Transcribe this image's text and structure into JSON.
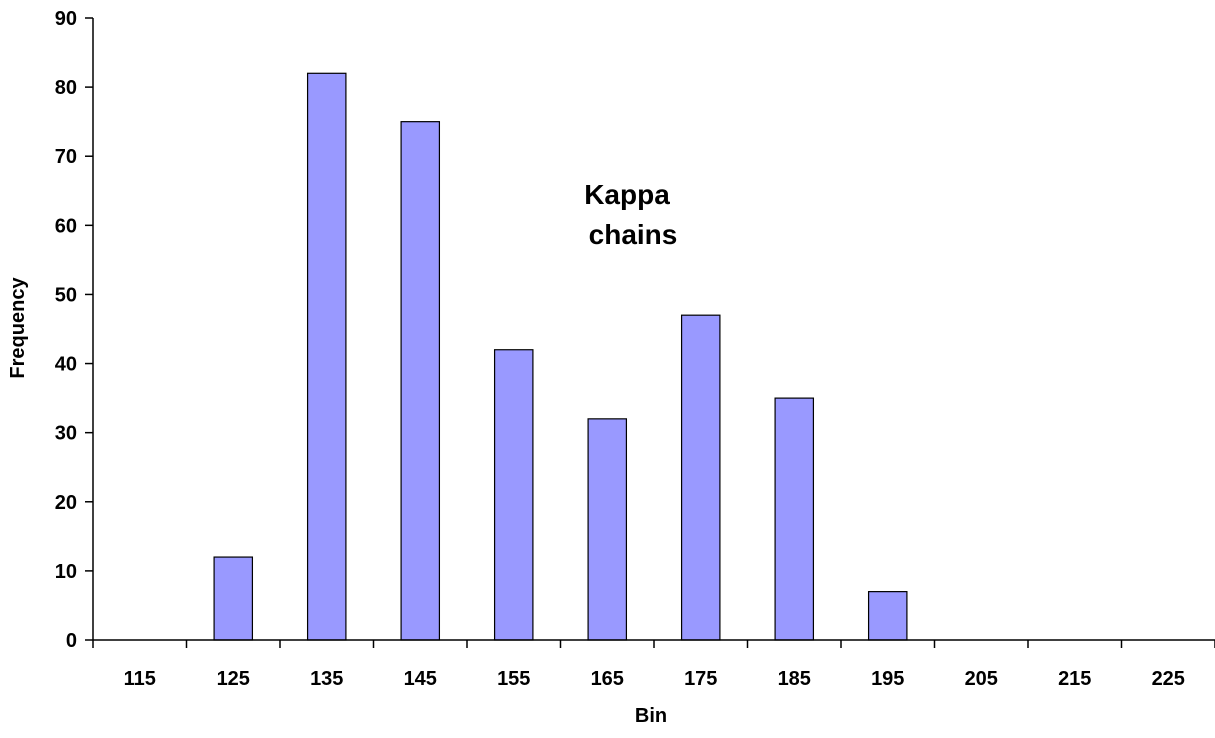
{
  "chart_data": {
    "type": "bar",
    "categories": [
      "115",
      "125",
      "135",
      "145",
      "155",
      "165",
      "175",
      "185",
      "195",
      "205",
      "215",
      "225"
    ],
    "values": [
      0,
      12,
      82,
      75,
      42,
      32,
      47,
      35,
      7,
      0,
      0,
      0
    ],
    "xlabel": "Bin",
    "ylabel": "Frequency",
    "ylim": [
      0,
      90
    ],
    "yticks": [
      0,
      10,
      20,
      30,
      40,
      50,
      60,
      70,
      80,
      90
    ],
    "annotation": [
      "Kappa",
      "chains"
    ],
    "grid": false,
    "legend": "none",
    "bar_color": "#9999ff",
    "bar_outline": "#000000"
  }
}
